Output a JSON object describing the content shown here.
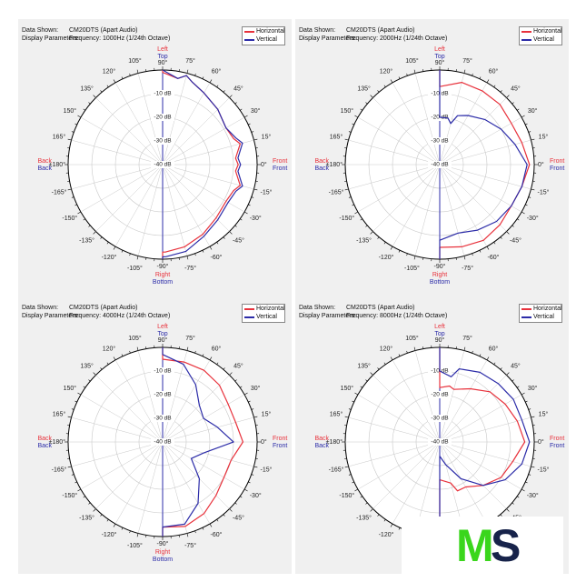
{
  "header": {
    "data_label": "Data Shown:",
    "data_value": "CM20DTS (Apart Audio)",
    "params_label": "Display Parameters:"
  },
  "legend": {
    "horizontal": "Horizontal",
    "vertical": "Vertical"
  },
  "colors": {
    "horizontal": "#e8323c",
    "vertical": "#2c2ca8",
    "panel_bg": "#f0f0f0",
    "grid": "#c8c8c8"
  },
  "side_labels": {
    "left": "Left",
    "top": "Top",
    "right": "Right",
    "bottom": "Bottom",
    "back": "Back",
    "back2": "Back",
    "front": "Front",
    "front2": "Front"
  },
  "logo": {
    "m": "M",
    "s": "S"
  },
  "chart_data": [
    {
      "type": "polar",
      "frequency": "Frequency: 1000Hz (1/24th Octave)",
      "angle_labels": [
        "90°",
        "75°",
        "60°",
        "45°",
        "30°",
        "15°",
        "0°",
        "-15°",
        "-30°",
        "-45°",
        "-60°",
        "-75°",
        "-90°",
        "-105°",
        "-120°",
        "-135°",
        "-150°",
        "-165°",
        "±180°",
        "165°",
        "150°",
        "135°",
        "120°",
        "105°"
      ],
      "radial_labels": [
        "-10 dB",
        "-20 dB",
        "-30 dB",
        "-40 dB"
      ],
      "rlim": [
        -40,
        0
      ],
      "series": [
        {
          "name": "Horizontal",
          "points": [
            [
              90,
              -1
            ],
            [
              80,
              -3
            ],
            [
              75,
              -1
            ],
            [
              70,
              -3
            ],
            [
              60,
              -5
            ],
            [
              45,
              -7
            ],
            [
              30,
              -9
            ],
            [
              20,
              -8
            ],
            [
              15,
              -6
            ],
            [
              5,
              -9
            ],
            [
              0,
              -8
            ],
            [
              -5,
              -9
            ],
            [
              -15,
              -6
            ],
            [
              -20,
              -8
            ],
            [
              -30,
              -9
            ],
            [
              -45,
              -8
            ],
            [
              -60,
              -6
            ],
            [
              -75,
              -4
            ],
            [
              -88,
              -3
            ],
            [
              -90,
              -3
            ]
          ]
        },
        {
          "name": "Vertical",
          "points": [
            [
              90,
              0
            ],
            [
              80,
              -3
            ],
            [
              75,
              -1
            ],
            [
              70,
              -3
            ],
            [
              60,
              -5
            ],
            [
              45,
              -7
            ],
            [
              30,
              -9
            ],
            [
              20,
              -7
            ],
            [
              15,
              -5
            ],
            [
              5,
              -8
            ],
            [
              0,
              -7
            ],
            [
              -5,
              -8
            ],
            [
              -15,
              -5
            ],
            [
              -20,
              -7
            ],
            [
              -30,
              -8
            ],
            [
              -45,
              -7
            ],
            [
              -60,
              -5
            ],
            [
              -75,
              -2
            ],
            [
              -88,
              -1
            ],
            [
              -90,
              -1
            ]
          ]
        }
      ]
    },
    {
      "type": "polar",
      "frequency": "Frequency: 2000Hz (1/24th Octave)",
      "angle_labels": [
        "90°",
        "75°",
        "60°",
        "45°",
        "30°",
        "15°",
        "0°",
        "-15°",
        "-30°",
        "-45°",
        "-60°",
        "-75°",
        "-90°",
        "-105°",
        "-120°",
        "-135°",
        "-150°",
        "-165°",
        "±180°",
        "165°",
        "150°",
        "135°",
        "120°",
        "105°"
      ],
      "radial_labels": [
        "-10 dB",
        "-20 dB",
        "-30 dB",
        "-40 dB"
      ],
      "rlim": [
        -40,
        0
      ],
      "series": [
        {
          "name": "Horizontal",
          "points": [
            [
              90,
              -7
            ],
            [
              75,
              -4
            ],
            [
              60,
              -4
            ],
            [
              45,
              -4
            ],
            [
              30,
              -5
            ],
            [
              15,
              -4
            ],
            [
              0,
              -2
            ],
            [
              -15,
              -4
            ],
            [
              -30,
              -5
            ],
            [
              -45,
              -4
            ],
            [
              -60,
              -3
            ],
            [
              -75,
              -4
            ],
            [
              -90,
              -5
            ]
          ]
        },
        {
          "name": "Vertical",
          "points": [
            [
              90,
              -20
            ],
            [
              80,
              -20
            ],
            [
              75,
              -22
            ],
            [
              70,
              -18
            ],
            [
              60,
              -16
            ],
            [
              45,
              -13
            ],
            [
              30,
              -10
            ],
            [
              15,
              -7
            ],
            [
              0,
              -3
            ],
            [
              -15,
              -4
            ],
            [
              -30,
              -5
            ],
            [
              -45,
              -6
            ],
            [
              -60,
              -8
            ],
            [
              -75,
              -10
            ],
            [
              -90,
              -8
            ]
          ]
        }
      ]
    },
    {
      "type": "polar",
      "frequency": "Frequency: 4000Hz (1/24th Octave)",
      "angle_labels": [
        "90°",
        "75°",
        "60°",
        "45°",
        "30°",
        "15°",
        "0°",
        "-15°",
        "-30°",
        "-45°",
        "-60°",
        "-75°",
        "-90°",
        "-105°",
        "-120°",
        "-135°",
        "-150°",
        "-165°",
        "±180°",
        "165°",
        "150°",
        "135°",
        "120°",
        "105°"
      ],
      "radial_labels": [
        "-10 dB",
        "-20 dB",
        "-30 dB",
        "-40 dB"
      ],
      "rlim": [
        -40,
        0
      ],
      "series": [
        {
          "name": "Horizontal",
          "points": [
            [
              90,
              -5
            ],
            [
              75,
              -5
            ],
            [
              60,
              -5
            ],
            [
              45,
              -6
            ],
            [
              30,
              -8
            ],
            [
              15,
              -8
            ],
            [
              0,
              -6
            ],
            [
              -15,
              -10
            ],
            [
              -30,
              -10
            ],
            [
              -45,
              -8
            ],
            [
              -60,
              -5
            ],
            [
              -75,
              -3
            ],
            [
              -90,
              -4
            ]
          ]
        },
        {
          "name": "Vertical",
          "points": [
            [
              90,
              -3
            ],
            [
              75,
              -6
            ],
            [
              60,
              -12
            ],
            [
              45,
              -18
            ],
            [
              30,
              -20
            ],
            [
              15,
              -16
            ],
            [
              0,
              -10
            ],
            [
              -15,
              -22
            ],
            [
              -30,
              -26
            ],
            [
              -45,
              -18
            ],
            [
              -60,
              -10
            ],
            [
              -75,
              -4
            ],
            [
              -90,
              -4
            ]
          ]
        }
      ]
    },
    {
      "type": "polar",
      "frequency": "Frequency: 8000Hz (1/24th Octave)",
      "angle_labels": [
        "90°",
        "75°",
        "60°",
        "45°",
        "30°",
        "15°",
        "0°",
        "-15°",
        "-30°",
        "-45°",
        "-60°",
        "-75°",
        "-90°",
        "-105°",
        "-120°",
        "-135°",
        "-150°",
        "-165°",
        "±180°",
        "165°",
        "150°",
        "135°",
        "120°",
        "105°"
      ],
      "radial_labels": [
        "-10 dB",
        "-20 dB",
        "-30 dB",
        "-40 dB"
      ],
      "rlim": [
        -40,
        0
      ],
      "series": [
        {
          "name": "Horizontal",
          "points": [
            [
              90,
              -17
            ],
            [
              80,
              -16
            ],
            [
              75,
              -17
            ],
            [
              60,
              -14
            ],
            [
              45,
              -10
            ],
            [
              30,
              -8
            ],
            [
              15,
              -6
            ],
            [
              0,
              -4
            ],
            [
              -15,
              -8
            ],
            [
              -30,
              -10
            ],
            [
              -45,
              -14
            ],
            [
              -60,
              -18
            ],
            [
              -70,
              -18
            ],
            [
              -75,
              -22
            ],
            [
              -90,
              -24
            ]
          ]
        },
        {
          "name": "Vertical",
          "points": [
            [
              90,
              -10
            ],
            [
              80,
              -12
            ],
            [
              75,
              -8
            ],
            [
              60,
              -6
            ],
            [
              45,
              -5
            ],
            [
              30,
              -4
            ],
            [
              15,
              -4
            ],
            [
              0,
              -2
            ],
            [
              -15,
              -4
            ],
            [
              -30,
              -8
            ],
            [
              -45,
              -14
            ],
            [
              -60,
              -22
            ],
            [
              -75,
              -30
            ],
            [
              -90,
              -34
            ]
          ]
        }
      ]
    }
  ]
}
